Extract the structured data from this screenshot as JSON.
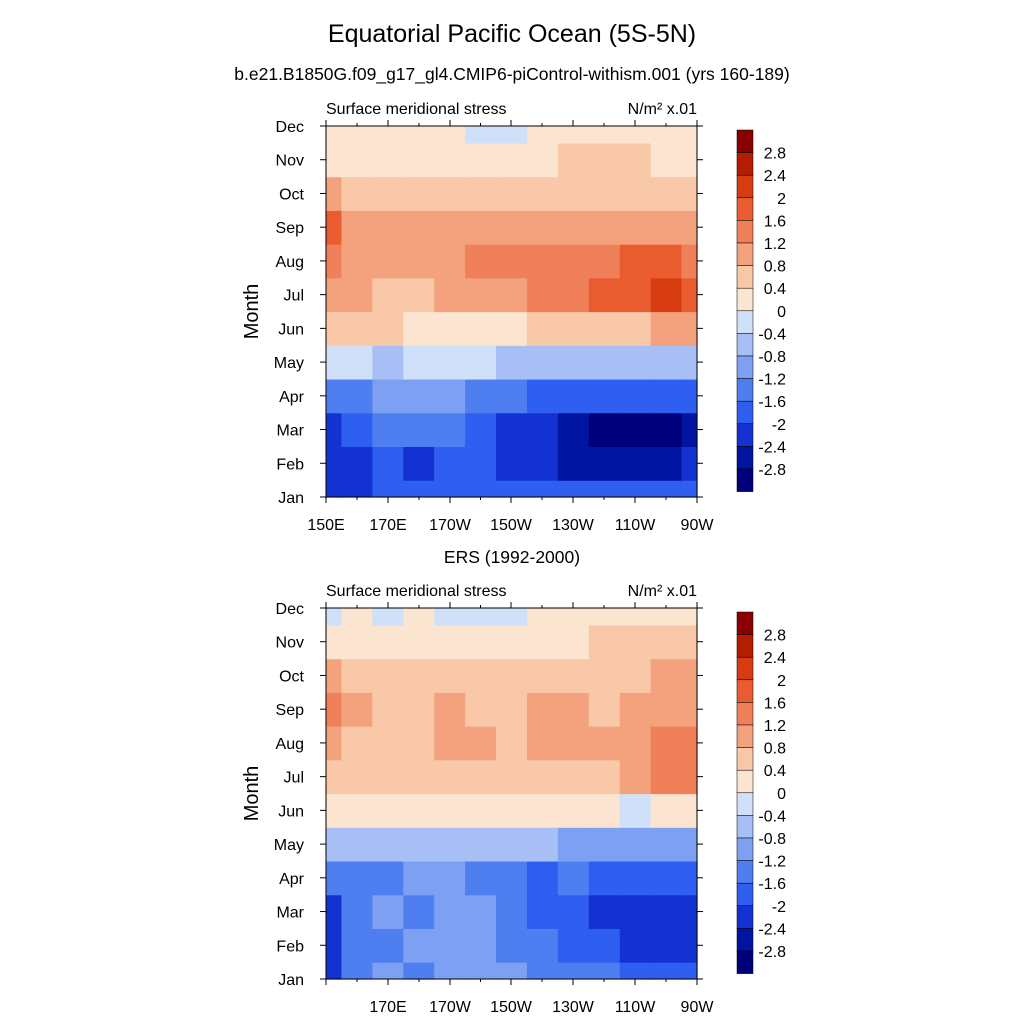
{
  "title": "Equatorial Pacific Ocean (5S-5N)",
  "subtitle": "b.e21.B1850G.f09_g17_gl4.CMIP6-piControl-withism.001 (yrs 160-189)",
  "chart_data": [
    {
      "type": "heatmap",
      "title": "b.e21.B1850G.f09_g17_gl4.CMIP6-piControl-withism.001 (yrs 160-189)",
      "left_label": "Surface meridional stress",
      "units_label": "N/m² x.01",
      "ylabel": "Month",
      "xlabel": "",
      "x_tick_labels": [
        "150E",
        "170E",
        "170W",
        "150W",
        "130W",
        "110W",
        "90W"
      ],
      "y_tick_labels": [
        "Jan",
        "Feb",
        "Mar",
        "Apr",
        "May",
        "Jun",
        "Jul",
        "Aug",
        "Sep",
        "Oct",
        "Nov",
        "Dec"
      ],
      "x_columns": [
        "150E",
        "160E",
        "170E",
        "180",
        "170W",
        "160W",
        "150W",
        "140W",
        "130W",
        "120W",
        "110W",
        "100W",
        "90W"
      ],
      "values": [
        [
          -2.2,
          -2.0,
          -1.8,
          -1.8,
          -1.6,
          -1.7,
          -1.8,
          -1.9,
          -1.9,
          -1.9,
          -1.9,
          -1.9,
          -1.8
        ],
        [
          -2.3,
          -2.0,
          -1.9,
          -2.0,
          -1.8,
          -1.8,
          -2.0,
          -2.2,
          -2.4,
          -2.4,
          -2.5,
          -2.5,
          -2.3
        ],
        [
          -2.0,
          -1.7,
          -1.5,
          -1.4,
          -1.3,
          -1.6,
          -2.0,
          -2.3,
          -2.6,
          -2.9,
          -3.0,
          -3.0,
          -2.7
        ],
        [
          -1.4,
          -1.2,
          -1.0,
          -0.9,
          -1.0,
          -1.2,
          -1.5,
          -1.7,
          -1.8,
          -1.9,
          -1.9,
          -1.8,
          -1.7
        ],
        [
          -0.2,
          -0.3,
          -0.4,
          -0.3,
          -0.2,
          -0.3,
          -0.5,
          -0.5,
          -0.5,
          -0.5,
          -0.5,
          -0.4,
          -0.4
        ],
        [
          0.6,
          0.6,
          0.5,
          0.4,
          0.4,
          0.3,
          0.4,
          0.5,
          0.6,
          0.7,
          0.8,
          0.9,
          0.9
        ],
        [
          1.2,
          0.9,
          0.8,
          0.8,
          0.9,
          1.0,
          1.2,
          1.4,
          1.6,
          1.8,
          2.0,
          2.3,
          2.0
        ],
        [
          1.6,
          1.1,
          1.0,
          1.0,
          1.1,
          1.3,
          1.4,
          1.5,
          1.6,
          1.6,
          1.7,
          1.8,
          1.6
        ],
        [
          1.7,
          1.1,
          1.0,
          1.0,
          1.0,
          1.1,
          1.2,
          1.2,
          1.2,
          1.1,
          1.1,
          1.1,
          1.0
        ],
        [
          0.9,
          0.8,
          0.8,
          0.8,
          0.8,
          0.8,
          0.8,
          0.8,
          0.8,
          0.8,
          0.8,
          0.8,
          0.8
        ],
        [
          0.3,
          0.3,
          0.3,
          0.3,
          0.3,
          0.3,
          0.4,
          0.4,
          0.5,
          0.7,
          0.6,
          0.4,
          0.4
        ],
        [
          0.1,
          0.1,
          0.2,
          0.1,
          0.1,
          0.0,
          0.0,
          0.2,
          0.3,
          0.4,
          0.4,
          0.3,
          0.3
        ]
      ]
    },
    {
      "type": "heatmap",
      "title": "ERS (1992-2000)",
      "left_label": "Surface meridional stress",
      "units_label": "N/m² x.01",
      "ylabel": "Month",
      "xlabel": "",
      "x_tick_labels": [
        "170E",
        "170W",
        "150W",
        "130W",
        "110W",
        "90W"
      ],
      "y_tick_labels": [
        "Jan",
        "Feb",
        "Mar",
        "Apr",
        "May",
        "Jun",
        "Jul",
        "Aug",
        "Sep",
        "Oct",
        "Nov",
        "Dec"
      ],
      "x_columns": [
        "150E",
        "160E",
        "170E",
        "180",
        "170W",
        "160W",
        "150W",
        "140W",
        "130W",
        "120W",
        "110W",
        "100W",
        "90W"
      ],
      "values": [
        [
          -2.2,
          -1.3,
          -1.0,
          -1.2,
          -1.1,
          -1.0,
          -1.1,
          -1.3,
          -1.4,
          -1.5,
          -1.6,
          -1.8,
          -1.8
        ],
        [
          -2.2,
          -1.4,
          -1.2,
          -1.1,
          -1.0,
          -1.0,
          -1.2,
          -1.5,
          -1.6,
          -1.8,
          -2.0,
          -2.1,
          -2.0
        ],
        [
          -2.0,
          -1.5,
          -1.0,
          -1.2,
          -1.0,
          -1.1,
          -1.3,
          -1.7,
          -1.8,
          -2.1,
          -2.2,
          -2.3,
          -2.2
        ],
        [
          -1.4,
          -1.3,
          -1.2,
          -1.1,
          -1.0,
          -1.2,
          -1.3,
          -1.6,
          -1.5,
          -1.6,
          -1.6,
          -1.7,
          -1.6
        ],
        [
          -0.5,
          -0.5,
          -0.4,
          -0.4,
          -0.5,
          -0.6,
          -0.6,
          -0.7,
          -0.8,
          -0.9,
          -0.9,
          -1.0,
          -1.0
        ],
        [
          0.4,
          0.3,
          0.3,
          0.2,
          0.3,
          0.3,
          0.4,
          0.2,
          0.2,
          0.1,
          0.0,
          0.1,
          0.2
        ],
        [
          0.8,
          0.7,
          0.7,
          0.6,
          0.7,
          0.8,
          0.7,
          0.7,
          0.7,
          0.8,
          1.0,
          1.3,
          1.3
        ],
        [
          1.1,
          0.8,
          0.8,
          0.8,
          0.9,
          0.9,
          0.8,
          0.9,
          0.9,
          1.0,
          1.1,
          1.3,
          1.4
        ],
        [
          1.3,
          1.0,
          0.8,
          0.8,
          0.9,
          0.8,
          0.8,
          0.9,
          0.9,
          0.8,
          0.9,
          1.0,
          1.2
        ],
        [
          0.9,
          0.7,
          0.7,
          0.8,
          0.8,
          0.8,
          0.7,
          0.8,
          0.7,
          0.7,
          0.8,
          0.9,
          1.1
        ],
        [
          0.3,
          0.2,
          0.2,
          0.2,
          0.3,
          0.2,
          0.2,
          0.3,
          0.3,
          0.5,
          0.6,
          0.7,
          0.8
        ],
        [
          -0.1,
          0.1,
          0.0,
          0.1,
          0.0,
          0.0,
          0.0,
          0.1,
          0.2,
          0.3,
          0.3,
          0.3,
          0.3
        ]
      ]
    }
  ],
  "colorbar": {
    "labels": [
      "2.8",
      "2.4",
      "2",
      "1.6",
      "1.2",
      "0.8",
      "0.4",
      "0",
      "-0.4",
      "-0.8",
      "-1.2",
      "-1.6",
      "-2",
      "-2.4",
      "-2.8"
    ],
    "levels": [
      -2.8,
      -2.4,
      -2.0,
      -1.6,
      -1.2,
      -0.8,
      -0.4,
      0,
      0.4,
      0.8,
      1.2,
      1.6,
      2.0,
      2.4,
      2.8
    ],
    "colors": [
      "#00007a",
      "#0014a0",
      "#1432d2",
      "#2e5ff0",
      "#4f7ef0",
      "#7da0f2",
      "#a7bff5",
      "#cfe0f8",
      "#fbe4d0",
      "#f8c8a8",
      "#f4a27e",
      "#f0805a",
      "#e95c30",
      "#d63c10",
      "#b51d00",
      "#8a0000"
    ]
  }
}
